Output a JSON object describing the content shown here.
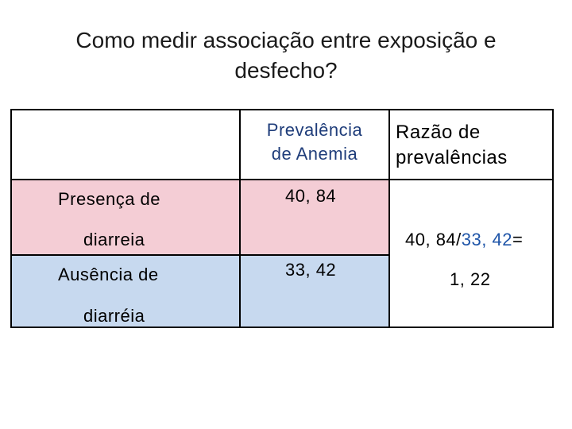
{
  "title": {
    "line1": "Como medir associação entre exposição e",
    "line2": "desfecho?"
  },
  "table": {
    "header_prevalence_line1": "Prevalência",
    "header_prevalence_line2": "de Anemia",
    "header_ratio_line1": "Razão de",
    "header_ratio_line2": "prevalências",
    "row_presence_label_line1": "Presença de",
    "row_presence_label_line2": "diarreia",
    "row_presence_value": "40, 84",
    "row_absence_label_line1": "Ausência de",
    "row_absence_label_line2": "diarréia",
    "row_absence_value": "33, 42",
    "ratio_numerator": "40, 84",
    "ratio_slash": "/",
    "ratio_denominator": "33, 42",
    "ratio_equals": "=",
    "ratio_result": "1, 22"
  },
  "colors": {
    "presence_row": "#f4cdd5",
    "absence_row": "#c7d9ef",
    "header_text": "#1f3d7a",
    "denominator_text": "#1f55a8"
  }
}
